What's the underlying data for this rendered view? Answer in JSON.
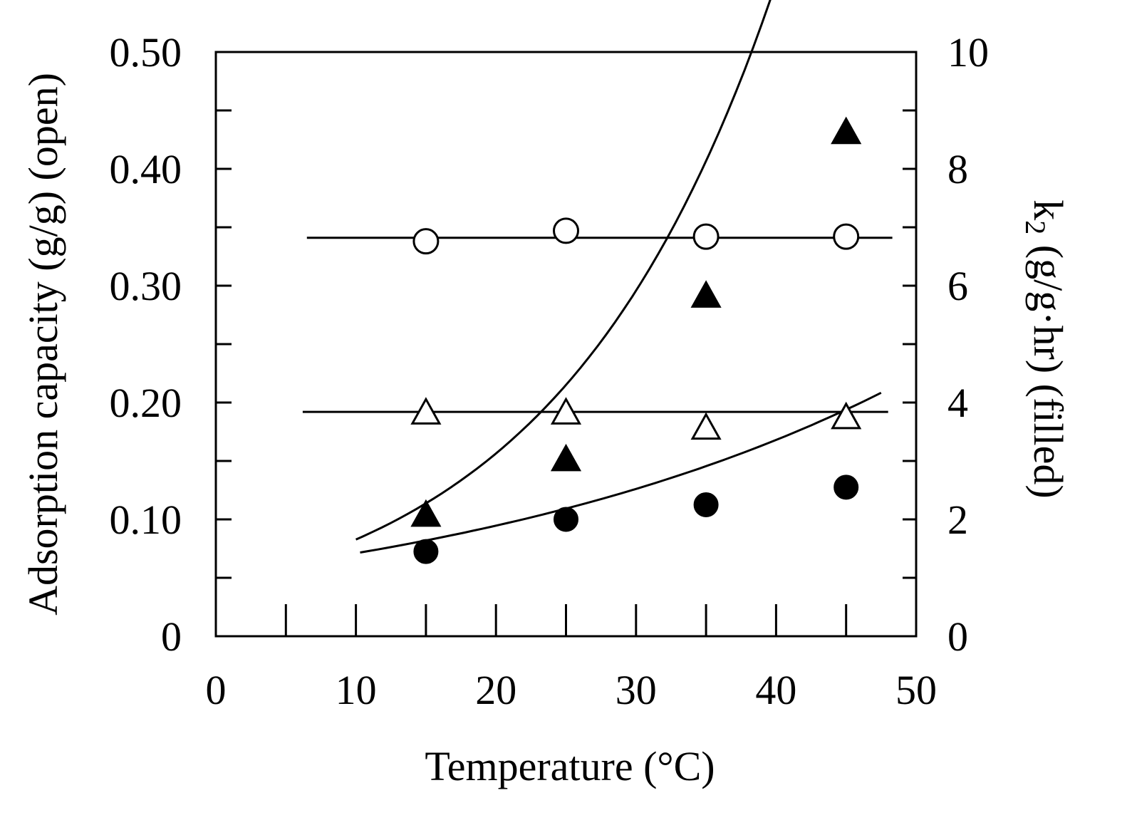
{
  "chart_data": {
    "type": "scatter",
    "xlabel": "Temperature (°C)",
    "ylabel_left": "Adsorption capacity (g/g) (open)",
    "ylabel_right_prefix": "k",
    "ylabel_right_subscript": "2",
    "ylabel_right_suffix": " (g/g·hr) (filled)",
    "xlim": [
      0,
      50
    ],
    "ylim_left": [
      0,
      0.5
    ],
    "ylim_right": [
      0,
      10
    ],
    "x_ticks": [
      0,
      10,
      20,
      30,
      40,
      50
    ],
    "x_tick_labels": [
      "0",
      "10",
      "20",
      "30",
      "40",
      "50"
    ],
    "x_minor_ticks": [
      5,
      15,
      25,
      35,
      45
    ],
    "y_left_ticks": [
      0,
      0.1,
      0.2,
      0.3,
      0.4,
      0.5
    ],
    "y_left_tick_labels": [
      "0",
      "0.10",
      "0.20",
      "0.30",
      "0.40",
      "0.50"
    ],
    "y_left_minor_ticks": [
      0.05,
      0.15,
      0.25,
      0.35,
      0.45
    ],
    "y_right_ticks": [
      0,
      2,
      4,
      6,
      8,
      10
    ],
    "y_right_tick_labels": [
      "0",
      "2",
      "4",
      "6",
      "8",
      "10"
    ],
    "y_right_minor_ticks": [
      1,
      3,
      5,
      7,
      9
    ],
    "series": [
      {
        "name": "open circle",
        "axis": "left",
        "marker": "circle",
        "filled": false,
        "x": [
          15,
          25,
          35,
          45
        ],
        "y": [
          0.338,
          0.347,
          0.342,
          0.342
        ]
      },
      {
        "name": "open triangle",
        "axis": "left",
        "marker": "triangle",
        "filled": false,
        "x": [
          15,
          25,
          35,
          45
        ],
        "y": [
          0.19,
          0.19,
          0.177,
          0.186
        ]
      },
      {
        "name": "filled triangle",
        "axis": "right",
        "marker": "triangle",
        "filled": true,
        "x": [
          15,
          25,
          35,
          45
        ],
        "y": [
          2.05,
          3.0,
          5.8,
          8.6
        ]
      },
      {
        "name": "filled circle",
        "axis": "right",
        "marker": "circle",
        "filled": true,
        "x": [
          15,
          25,
          35,
          45
        ],
        "y": [
          1.45,
          2.0,
          2.25,
          2.55
        ]
      }
    ],
    "fit_lines": [
      {
        "name": "open circle fit",
        "axis": "left",
        "kind": "linear",
        "x_range": [
          6.5,
          48.3
        ],
        "params": [
          0.341,
          0
        ]
      },
      {
        "name": "open triangle fit",
        "axis": "left",
        "kind": "linear",
        "x_range": [
          6.2,
          48.0
        ],
        "params": [
          0.192,
          0
        ]
      },
      {
        "name": "filled triangle fit",
        "axis": "right",
        "kind": "exp",
        "x_range": [
          10,
          47
        ],
        "params": [
          0.875,
          0.0637
        ]
      },
      {
        "name": "filled circle fit",
        "axis": "right",
        "kind": "exp",
        "x_range": [
          10.3,
          47.5
        ],
        "params": [
          1.066,
          0.0287
        ]
      }
    ]
  }
}
